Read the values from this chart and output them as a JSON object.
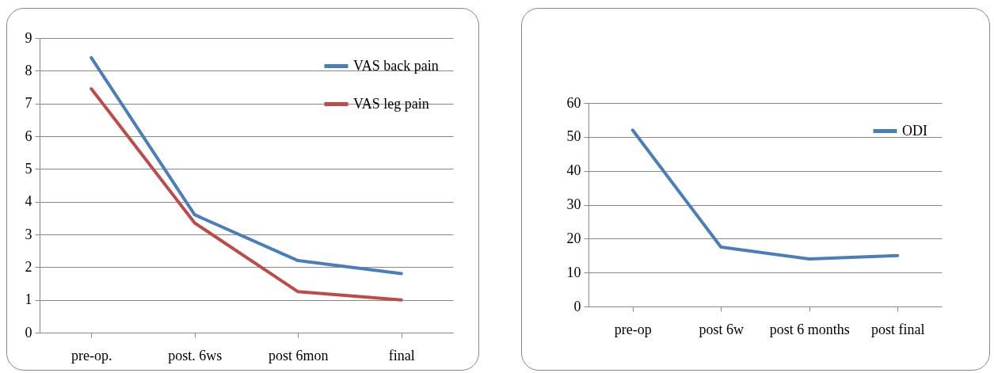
{
  "chart_data": [
    {
      "type": "line",
      "categories": [
        "pre-op.",
        "post. 6ws",
        "post 6mon",
        "final"
      ],
      "ylim": [
        0,
        9
      ],
      "yticks": [
        0,
        1,
        2,
        3,
        4,
        5,
        6,
        7,
        8,
        9
      ],
      "grid": "y",
      "legend": "top right",
      "marker": "none",
      "line_style": "solid",
      "series": [
        {
          "name": "VAS back pain",
          "color": "#4a7ebb",
          "values": [
            8.4,
            3.6,
            2.2,
            1.8
          ]
        },
        {
          "name": "VAS leg pain",
          "color": "#be4b48",
          "values": [
            7.45,
            3.35,
            1.25,
            1.0
          ]
        }
      ]
    },
    {
      "type": "line",
      "categories": [
        "pre-op",
        "post 6w",
        "post 6 months",
        "post final"
      ],
      "ylim": [
        0,
        60
      ],
      "yticks": [
        0,
        10,
        20,
        30,
        40,
        50,
        60
      ],
      "grid": "y",
      "legend": "top right",
      "marker": "none",
      "line_style": "solid",
      "series": [
        {
          "name": "ODI",
          "color": "#4a7ebb",
          "values": [
            52,
            17.5,
            14,
            15
          ]
        }
      ]
    }
  ]
}
